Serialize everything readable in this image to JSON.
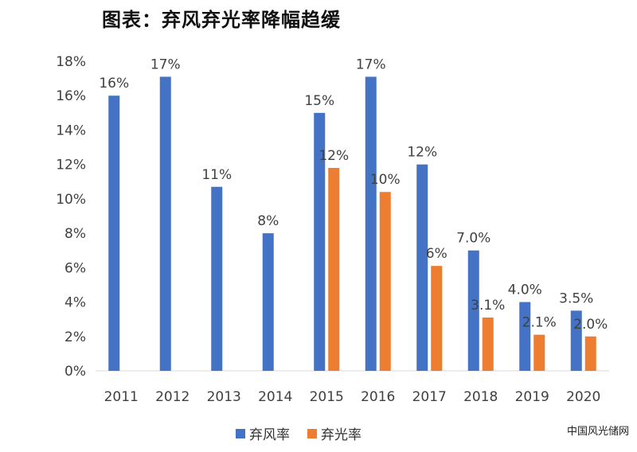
{
  "title": "图表：弃风弃光率降幅趋缓",
  "watermark": "中国风光储网",
  "colors": {
    "wind": "#4472C4",
    "solar": "#ED7D31",
    "axis": "#D9D9D9",
    "text": "#404040"
  },
  "chart_data": {
    "type": "bar",
    "title": "",
    "xlabel": "",
    "ylabel": "",
    "ylim": [
      0,
      18
    ],
    "yticks": [
      "0%",
      "2%",
      "4%",
      "6%",
      "8%",
      "10%",
      "12%",
      "14%",
      "16%",
      "18%"
    ],
    "categories": [
      "2011",
      "2012",
      "2013",
      "2014",
      "2015",
      "2016",
      "2017",
      "2018",
      "2019",
      "2020"
    ],
    "grid": false,
    "legend_position": "bottom",
    "series": [
      {
        "name": "弃风率",
        "color": "#4472C4",
        "values": [
          16,
          17.1,
          10.7,
          8,
          15,
          17.1,
          12,
          7.0,
          4.0,
          3.5
        ],
        "labels": [
          "16%",
          "17%",
          "11%",
          "8%",
          "15%",
          "17%",
          "12%",
          "7.0%",
          "4.0%",
          "3.5%"
        ]
      },
      {
        "name": "弃光率",
        "color": "#ED7D31",
        "values": [
          null,
          null,
          null,
          null,
          11.8,
          10.4,
          6.1,
          3.1,
          2.1,
          2.0
        ],
        "labels": [
          null,
          null,
          null,
          null,
          "12%",
          "10%",
          "6%",
          "3.1%",
          "2.1%",
          "2.0%"
        ]
      }
    ]
  }
}
